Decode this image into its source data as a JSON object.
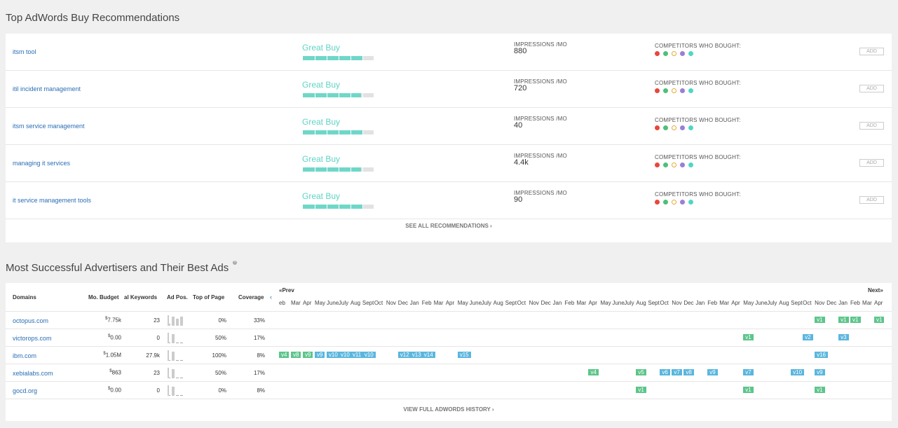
{
  "recommendations": {
    "title": "Top AdWords Buy Recommendations",
    "impressions_label": "IMPRESSIONS /MO",
    "competitors_label": "COMPETITORS WHO BOUGHT:",
    "add_label": "ADD",
    "see_all_label": "SEE ALL RECOMMENDATIONS ›",
    "competitor_colors": [
      "#e8473c",
      "#4cc07a",
      "#e6a93a",
      "#9b7fd6",
      "#4fd6c4"
    ],
    "rows": [
      {
        "keyword": "itsm tool",
        "grade": "Great Buy",
        "score": 0.84,
        "impressions": "880"
      },
      {
        "keyword": "itil incident management",
        "grade": "Great Buy",
        "score": 0.82,
        "impressions": "720"
      },
      {
        "keyword": "itsm service management",
        "grade": "Great Buy",
        "score": 0.84,
        "impressions": "40"
      },
      {
        "keyword": "managing it services",
        "grade": "Great Buy",
        "score": 0.82,
        "impressions": "4.4k"
      },
      {
        "keyword": "it service management tools",
        "grade": "Great Buy",
        "score": 0.84,
        "impressions": "90"
      }
    ]
  },
  "advertisers": {
    "title": "Most Successful Advertisers and Their Best Ads",
    "help_icon": "?",
    "columns": {
      "domains": "Domains",
      "budget": "Mo. Budget",
      "keywords": "al Keywords",
      "adpos": "Ad Pos.",
      "topofpage": "Top of Page",
      "coverage": "Coverage"
    },
    "collapse_icon": "‹",
    "prev_label": "«Prev",
    "next_label": "Next»",
    "months": [
      "eb",
      "Mar",
      "Apr",
      "May",
      "June",
      "July",
      "Aug",
      "Sept",
      "Oct",
      "Nov",
      "Dec",
      "Jan",
      "Feb",
      "Mar",
      "Apr",
      "May",
      "June",
      "July",
      "Aug",
      "Sept",
      "Oct",
      "Nov",
      "Dec",
      "Jan",
      "Feb",
      "Mar",
      "Apr",
      "May",
      "June",
      "July",
      "Aug",
      "Sept",
      "Oct",
      "Nov",
      "Dec",
      "Jan",
      "Feb",
      "Mar",
      "Apr",
      "May",
      "June",
      "July",
      "Aug",
      "Sept",
      "Oct",
      "Nov",
      "Dec",
      "Jan",
      "Feb",
      "Mar",
      "Apr"
    ],
    "view_full_label": "VIEW FULL ADWORDS HISTORY ›",
    "rows": [
      {
        "domain": "octopus.com",
        "budget_currency": "$",
        "budget": "7.75k",
        "keywords": "23",
        "adpos": [
          0.2,
          0.9,
          0.7,
          0.9
        ],
        "topofpage": "0%",
        "coverage": "33%",
        "ads": [
          {
            "label": "v1",
            "col": 45,
            "color": "g"
          },
          {
            "label": "v1",
            "col": 47,
            "color": "g"
          },
          {
            "label": "v1",
            "col": 48,
            "color": "g"
          },
          {
            "label": "v1",
            "col": 50,
            "color": "g"
          }
        ]
      },
      {
        "domain": "victorops.com",
        "budget_currency": "$",
        "budget": "0.00",
        "keywords": "0",
        "adpos": [
          0,
          0.9,
          0,
          0
        ],
        "topofpage": "50%",
        "coverage": "17%",
        "ads": [
          {
            "label": "v1",
            "col": 39,
            "color": "g"
          },
          {
            "label": "v2",
            "col": 44,
            "color": "b"
          },
          {
            "label": "v3",
            "col": 47,
            "color": "b"
          }
        ]
      },
      {
        "domain": "ibm.com",
        "budget_currency": "$",
        "budget": "1.05M",
        "keywords": "27.9k",
        "adpos": [
          0,
          0.9,
          0,
          0
        ],
        "topofpage": "100%",
        "coverage": "8%",
        "ads": [
          {
            "label": "v4",
            "col": 0,
            "color": "g"
          },
          {
            "label": "v8",
            "col": 1,
            "color": "g"
          },
          {
            "label": "v9",
            "col": 2,
            "color": "g"
          },
          {
            "label": "v9",
            "col": 3,
            "color": "b"
          },
          {
            "label": "v10",
            "col": 4,
            "color": "b"
          },
          {
            "label": "v10",
            "col": 5,
            "color": "b"
          },
          {
            "label": "v11",
            "col": 6,
            "color": "b"
          },
          {
            "label": "v10",
            "col": 7,
            "color": "b"
          },
          {
            "label": "v12",
            "col": 10,
            "color": "b"
          },
          {
            "label": "v13",
            "col": 11,
            "color": "b"
          },
          {
            "label": "v14",
            "col": 12,
            "color": "b"
          },
          {
            "label": "v15",
            "col": 15,
            "color": "b"
          },
          {
            "label": "v16",
            "col": 45,
            "color": "b"
          }
        ]
      },
      {
        "domain": "xebialabs.com",
        "budget_currency": "$",
        "budget": "863",
        "keywords": "23",
        "adpos": [
          0,
          0.9,
          0,
          0
        ],
        "topofpage": "50%",
        "coverage": "17%",
        "ads": [
          {
            "label": "v4",
            "col": 26,
            "color": "g"
          },
          {
            "label": "v5",
            "col": 30,
            "color": "g"
          },
          {
            "label": "v6",
            "col": 32,
            "color": "b"
          },
          {
            "label": "v7",
            "col": 33,
            "color": "b"
          },
          {
            "label": "v8",
            "col": 34,
            "color": "b"
          },
          {
            "label": "v9",
            "col": 36,
            "color": "b"
          },
          {
            "label": "v7",
            "col": 39,
            "color": "b"
          },
          {
            "label": "v10",
            "col": 43,
            "color": "b"
          },
          {
            "label": "v9",
            "col": 45,
            "color": "b"
          }
        ]
      },
      {
        "domain": "gocd.org",
        "budget_currency": "$",
        "budget": "0.00",
        "keywords": "0",
        "adpos": [
          0,
          0.9,
          0,
          0
        ],
        "topofpage": "0%",
        "coverage": "8%",
        "ads": [
          {
            "label": "v1",
            "col": 30,
            "color": "g"
          },
          {
            "label": "v1",
            "col": 39,
            "color": "g"
          },
          {
            "label": "v1",
            "col": 45,
            "color": "g"
          }
        ]
      }
    ]
  }
}
